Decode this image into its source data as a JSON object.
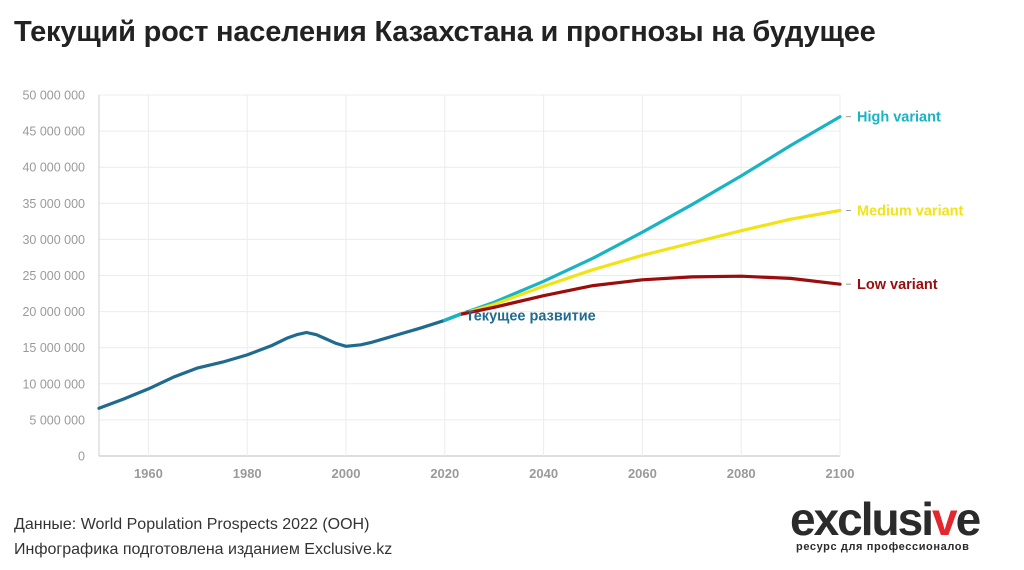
{
  "page": {
    "title": "Текущий рост населения Казахстана и прогнозы на будущее",
    "source_line1": "Данные: World Population Prospects 2022 (ООН)",
    "source_line2": "Инфографика подготовлена изданием Exclusive.kz",
    "logo_word_a": "exclusi",
    "logo_word_v": "v",
    "logo_word_e": "e",
    "logo_tagline": "ресурс для профессионалов"
  },
  "chart_data": {
    "type": "line",
    "title": "Текущий рост населения Казахстана и прогнозы на будущее",
    "xlabel": "",
    "ylabel": "",
    "xlim": [
      1950,
      2100
    ],
    "ylim": [
      0,
      50000000
    ],
    "x_ticks": [
      1960,
      1980,
      2000,
      2020,
      2040,
      2060,
      2080,
      2100
    ],
    "x_tick_labels": [
      "1960",
      "1980",
      "2000",
      "2020",
      "2040",
      "2060",
      "2080",
      "2100"
    ],
    "y_ticks": [
      0,
      5000000,
      10000000,
      15000000,
      20000000,
      25000000,
      30000000,
      35000000,
      40000000,
      45000000,
      50000000
    ],
    "y_tick_labels": [
      "0",
      "5 000 000",
      "10 000 000",
      "15 000 000",
      "20 000 000",
      "25 000 000",
      "30 000 000",
      "35 000 000",
      "40 000 000",
      "45 000 000",
      "50 000 000"
    ],
    "grid": true,
    "legend": "labels at line ends",
    "series": [
      {
        "name": "Текущее развитие",
        "color": "#1f6a8f",
        "accent_color": "#19b4c4",
        "x": [
          1950,
          1955,
          1960,
          1965,
          1970,
          1975,
          1980,
          1985,
          1988,
          1990,
          1992,
          1994,
          1996,
          1998,
          2000,
          2003,
          2005,
          2008,
          2010,
          2015,
          2020,
          2023
        ],
        "y": [
          6600000,
          7900000,
          9300000,
          10900000,
          12200000,
          13000000,
          14000000,
          15300000,
          16300000,
          16800000,
          17100000,
          16800000,
          16200000,
          15600000,
          15200000,
          15400000,
          15700000,
          16300000,
          16700000,
          17700000,
          18800000,
          19600000
        ]
      },
      {
        "name": "High variant",
        "color": "#19b4c4",
        "x": [
          2023,
          2030,
          2040,
          2050,
          2060,
          2070,
          2080,
          2090,
          2100
        ],
        "y": [
          19600000,
          21300000,
          24200000,
          27400000,
          31000000,
          34800000,
          38800000,
          43000000,
          47000000
        ]
      },
      {
        "name": "Medium variant",
        "color": "#f2e318",
        "x": [
          2023,
          2030,
          2040,
          2050,
          2060,
          2070,
          2080,
          2090,
          2100
        ],
        "y": [
          19600000,
          21000000,
          23500000,
          25800000,
          27800000,
          29500000,
          31200000,
          32800000,
          34000000
        ]
      },
      {
        "name": "Low variant",
        "color": "#9b0c0c",
        "x": [
          2023,
          2030,
          2040,
          2050,
          2060,
          2070,
          2080,
          2090,
          2100
        ],
        "y": [
          19600000,
          20600000,
          22200000,
          23600000,
          24400000,
          24800000,
          24900000,
          24600000,
          23800000
        ]
      }
    ]
  }
}
